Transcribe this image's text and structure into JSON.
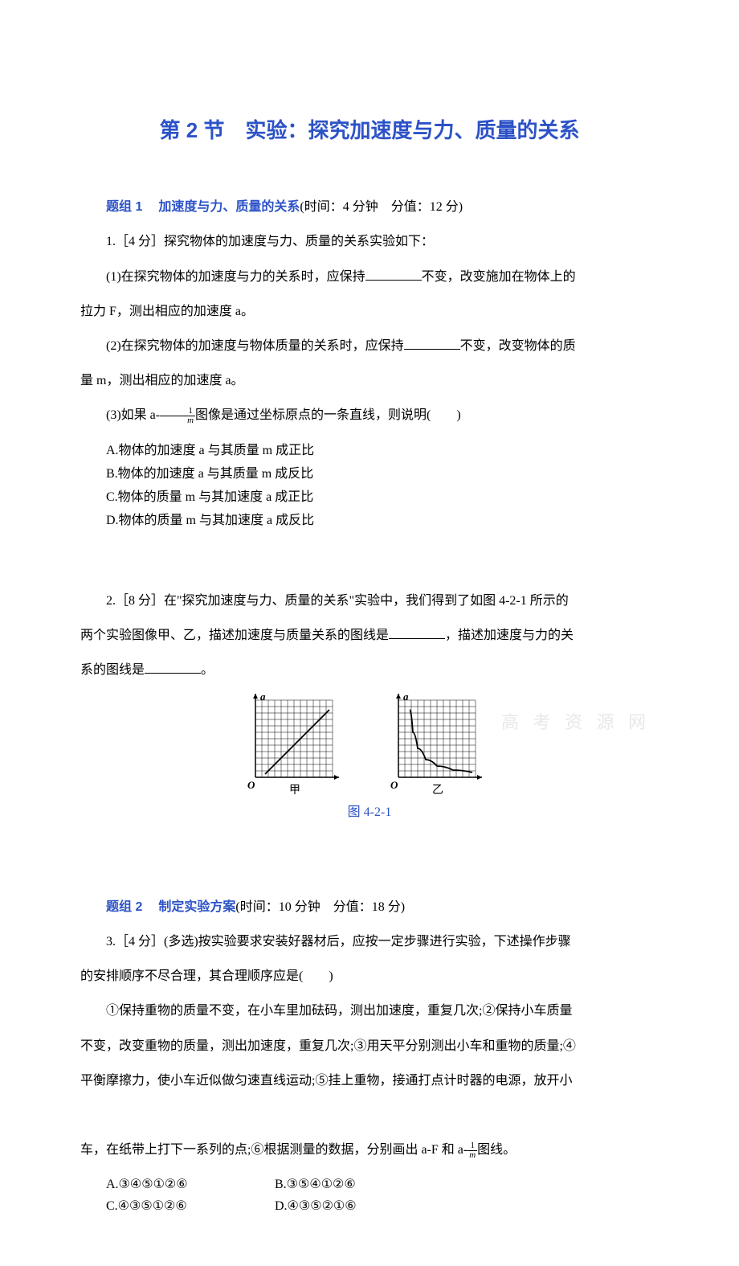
{
  "colors": {
    "text": "#000000",
    "accent_blue": "#2c52c7",
    "watermark": "#e8e8e8",
    "background": "#ffffff",
    "grid_line": "#000000"
  },
  "title": "第 2 节　实验：探究加速度与力、质量的关系",
  "group1": {
    "header_label": "题组 1",
    "header_title": "加速度与力、质量的关系",
    "header_meta": "(时间：4 分钟　分值：12 分)",
    "q1": {
      "lead": "1.［4 分］探究物体的加速度与力、质量的关系实验如下：",
      "p1_before": "(1)在探究物体的加速度与力的关系时，应保持",
      "p1_after1": "不变，改变施加在物体上的",
      "p1_after2": "拉力 F，测出相应的加速度 a。",
      "p2_before": "(2)在探究物体的加速度与物体质量的关系时，应保持",
      "p2_after1": "不变，改变物体的质",
      "p2_after2": "量 m，测出相应的加速度 a。",
      "p3_before": "(3)如果 a-",
      "p3_after": "图像是通过坐标原点的一条直线，则说明(　　)",
      "options": {
        "A": "A.物体的加速度 a 与其质量 m 成正比",
        "B": "B.物体的加速度 a 与其质量 m 成反比",
        "C": "C.物体的质量 m 与其加速度 a 成正比",
        "D": "D.物体的质量 m 与其加速度 a 成反比"
      }
    },
    "q2": {
      "lead_before": "2.［8 分］在\"探究加速度与力、质量的关系\"实验中，我们得到了如图 4-2-1 所示的",
      "line2_before": "两个实验图像甲、乙，描述加速度与质量关系的图线是",
      "line2_after": "，描述加速度与力的关",
      "line3_before": "系的图线是",
      "line3_after": "。",
      "caption": "图 4-2-1",
      "chart_left": {
        "type": "line_on_grid",
        "axis_y": "a",
        "axis_x_label": "甲",
        "origin_label": "O",
        "grid": {
          "cols": 12,
          "rows": 12,
          "cell": 8
        },
        "line_points": [
          [
            12,
            92
          ],
          [
            92,
            12
          ]
        ],
        "styling": {
          "line_width": 1.8,
          "color": "#000000"
        }
      },
      "chart_right": {
        "type": "curve_on_grid",
        "axis_y": "a",
        "axis_x_label": "乙",
        "origin_label": "O",
        "grid": {
          "cols": 12,
          "rows": 12,
          "cell": 8
        },
        "curve_points": [
          [
            14,
            12
          ],
          [
            18,
            40
          ],
          [
            24,
            60
          ],
          [
            34,
            74
          ],
          [
            48,
            82
          ],
          [
            68,
            87
          ],
          [
            92,
            90
          ]
        ],
        "styling": {
          "line_width": 1.8,
          "color": "#000000"
        }
      }
    }
  },
  "group2": {
    "header_label": "题组 2",
    "header_title": "制定实验方案",
    "header_meta": "(时间：10 分钟　分值：18 分)",
    "q3": {
      "lead1": "3.［4 分］(多选)按实验要求安装好器材后，应按一定步骤进行实验，下述操作步骤",
      "lead2": "的安排顺序不尽合理，其合理顺序应是(　　)",
      "body1": "①保持重物的质量不变，在小车里加砝码，测出加速度，重复几次;②保持小车质量",
      "body2": "不变，改变重物的质量，测出加速度，重复几次;③用天平分别测出小车和重物的质量;④",
      "body3": "平衡摩擦力，使小车近似做匀速直线运动;⑤挂上重物，接通打点计时器的电源，放开小",
      "body4_before": "车，在纸带上打下一系列的点;⑥根据测量的数据，分别画出 a-F 和 a-",
      "body4_after": "图线。",
      "options": {
        "A": "A.③④⑤①②⑥",
        "B": "B.③⑤④①②⑥",
        "C": "C.④③⑤①②⑥",
        "D": "D.④③⑤②①⑥"
      }
    }
  },
  "watermark": "高 考 资 源 网",
  "frac": {
    "num": "1",
    "den": "m"
  }
}
